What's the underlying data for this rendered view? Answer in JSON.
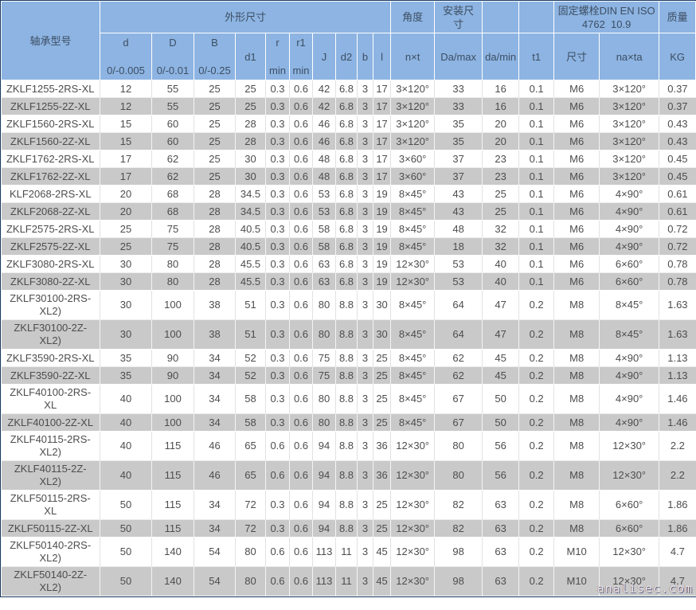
{
  "table": {
    "header": {
      "model": "轴承型号",
      "dims_group": "外形尺寸",
      "angle_group": "角度",
      "mount_group": "安装尺寸",
      "blank1": "",
      "blank2": "",
      "bolt_group": "固定螺栓DIN EN ISO 4762  10.9",
      "mass_group": "质量",
      "d_top": "d",
      "d_tol": "0/-0.005",
      "D_top": "D",
      "D_tol": "0/-0.01",
      "B_top": "B",
      "B_tol": "0/-0.25",
      "d1": "d1",
      "r_top": "r",
      "r_min": "min",
      "r1_top": "r1",
      "r1_min": "min",
      "J": "J",
      "d2": "d2",
      "b": "b",
      "l": "l",
      "nxt": "n×t",
      "Da_max": "Da/max",
      "da_min": "da/min",
      "t1": "t1",
      "size": "尺寸",
      "naxta": "na×ta",
      "kg": "KG"
    },
    "rows": [
      [
        "ZKLF1255-2RS-XL",
        "12",
        "55",
        "25",
        "25",
        "0.3",
        "0.6",
        "42",
        "6.8",
        "3",
        "17",
        "3×120°",
        "33",
        "16",
        "0.1",
        "M6",
        "3×120°",
        "0.37"
      ],
      [
        "ZKLF1255-2Z-XL",
        "12",
        "55",
        "25",
        "25",
        "0.3",
        "0.6",
        "42",
        "6.8",
        "3",
        "17",
        "3×120°",
        "33",
        "16",
        "0.1",
        "M6",
        "3×120°",
        "0.37"
      ],
      [
        "ZKLF1560-2RS-XL",
        "15",
        "60",
        "25",
        "28",
        "0.3",
        "0.6",
        "46",
        "6.8",
        "3",
        "17",
        "3×120°",
        "35",
        "20",
        "0.1",
        "M6",
        "3×120°",
        "0.43"
      ],
      [
        "ZKLF1560-2Z-XL",
        "15",
        "60",
        "25",
        "28",
        "0.3",
        "0.6",
        "46",
        "6.8",
        "3",
        "17",
        "3×120°",
        "35",
        "20",
        "0.1",
        "M6",
        "3×120°",
        "0.43"
      ],
      [
        "ZKLF1762-2RS-XL",
        "17",
        "62",
        "25",
        "30",
        "0.3",
        "0.6",
        "48",
        "6.8",
        "3",
        "17",
        "3×60°",
        "37",
        "23",
        "0.1",
        "M6",
        "3×120°",
        "0.45"
      ],
      [
        "ZKLF1762-2Z-XL",
        "17",
        "62",
        "25",
        "30",
        "0.3",
        "0.6",
        "48",
        "6.8",
        "3",
        "17",
        "3×60°",
        "37",
        "23",
        "0.1",
        "M6",
        "3×120°",
        "0.45"
      ],
      [
        "KLF2068-2RS-XL",
        "20",
        "68",
        "28",
        "34.5",
        "0.3",
        "0.6",
        "53",
        "6.8",
        "3",
        "19",
        "8×45°",
        "43",
        "25",
        "0.1",
        "M6",
        "4×90°",
        "0.61"
      ],
      [
        "ZKLF2068-2Z-XL",
        "20",
        "68",
        "28",
        "34.5",
        "0.3",
        "0.6",
        "53",
        "6.8",
        "3",
        "19",
        "8×45°",
        "43",
        "25",
        "0.1",
        "M6",
        "4×90°",
        "0.61"
      ],
      [
        "ZKLF2575-2RS-XL",
        "25",
        "75",
        "28",
        "40.5",
        "0.3",
        "0.6",
        "58",
        "6.8",
        "3",
        "19",
        "8×45°",
        "48",
        "32",
        "0.1",
        "M6",
        "4×90°",
        "0.72"
      ],
      [
        "ZKLF2575-2Z-XL",
        "25",
        "75",
        "28",
        "40.5",
        "0.3",
        "0.6",
        "58",
        "6.8",
        "3",
        "19",
        "8×45°",
        "18",
        "32",
        "0.1",
        "M6",
        "4×90°",
        "0.72"
      ],
      [
        "ZKLF3080-2RS-XL",
        "30",
        "80",
        "28",
        "45.5",
        "0.3",
        "0.6",
        "63",
        "6.8",
        "3",
        "19",
        "12×30°",
        "53",
        "40",
        "0.1",
        "M6",
        "6×60°",
        "0.78"
      ],
      [
        "ZKLF3080-2Z-XL",
        "30",
        "80",
        "28",
        "45.5",
        "0.3",
        "0.6",
        "63",
        "6.8",
        "3",
        "19",
        "12×30°",
        "53",
        "40",
        "0.1",
        "M6",
        "6×60°",
        "0.78"
      ],
      [
        "ZKLF30100-2RS-XL2)",
        "30",
        "100",
        "38",
        "51",
        "0.3",
        "0.6",
        "80",
        "8.8",
        "3",
        "30",
        "8×45°",
        "64",
        "47",
        "0.2",
        "M8",
        "8×45°",
        "1.63"
      ],
      [
        "ZKLF30100-2Z-XL2)",
        "30",
        "100",
        "38",
        "51",
        "0.3",
        "0.6",
        "80",
        "8.8",
        "3",
        "30",
        "8×45°",
        "64",
        "47",
        "0.2",
        "M8",
        "8×45°",
        "1.63"
      ],
      [
        "ZKLF3590-2RS-XL",
        "35",
        "90",
        "34",
        "52",
        "0.3",
        "0.6",
        "75",
        "8.8",
        "3",
        "25",
        "8×45°",
        "62",
        "45",
        "0.2",
        "M8",
        "4×90°",
        "1.13"
      ],
      [
        "ZKLF3590-2Z-XL",
        "35",
        "90",
        "34",
        "52",
        "0.3",
        "0.6",
        "75",
        "8.8",
        "3",
        "25",
        "8×45°",
        "62",
        "45",
        "0.2",
        "M8",
        "4×90°",
        "1.13"
      ],
      [
        "ZKLF40100-2RS-XL",
        "40",
        "100",
        "34",
        "58",
        "0.3",
        "0.6",
        "80",
        "8.8",
        "3",
        "25",
        "8×45°",
        "67",
        "50",
        "0.2",
        "M8",
        "4×90°",
        "1.46"
      ],
      [
        "ZKLF40100-2Z-XL",
        "40",
        "100",
        "34",
        "58",
        "0.3",
        "0.6",
        "80",
        "8.8",
        "3",
        "25",
        "8×45°",
        "67",
        "50",
        "0.2",
        "M8",
        "4×90°",
        "1.46"
      ],
      [
        "ZKLF40115-2RS-XL2)",
        "40",
        "115",
        "46",
        "65",
        "0.6",
        "0.6",
        "94",
        "8.8",
        "3",
        "36",
        "12×30°",
        "80",
        "56",
        "0.2",
        "M8",
        "12×30°",
        "2.2"
      ],
      [
        "ZKLF40115-2Z-XL2)",
        "40",
        "115",
        "46",
        "65",
        "0.6",
        "0.6",
        "94",
        "8.8",
        "3",
        "36",
        "12×30°",
        "80",
        "56",
        "0.2",
        "M8",
        "12×30°",
        "2.2"
      ],
      [
        "ZKLF50115-2RS-XL",
        "50",
        "115",
        "34",
        "72",
        "0.3",
        "0.6",
        "94",
        "8.8",
        "3",
        "25",
        "12×30°",
        "82",
        "63",
        "0.2",
        "M8",
        "6×60°",
        "1.86"
      ],
      [
        "ZKLF50115-2Z-XL",
        "50",
        "115",
        "34",
        "72",
        "0.3",
        "0.6",
        "94",
        "8.8",
        "3",
        "25",
        "12×30°",
        "82",
        "63",
        "0.2",
        "M8",
        "6×60°",
        "1.86"
      ],
      [
        "ZKLF50140-2RS-XL2)",
        "50",
        "140",
        "54",
        "80",
        "0.6",
        "0.6",
        "113",
        "11",
        "3",
        "45",
        "12×30°",
        "98",
        "63",
        "0.2",
        "M10",
        "12×30°",
        "4.7"
      ],
      [
        "ZKLF50140-2Z-XL2)",
        "50",
        "140",
        "54",
        "80",
        "0.6",
        "0.6",
        "113",
        "11",
        "3",
        "45",
        "12×30°",
        "98",
        "63",
        "0.2",
        "M10",
        "12×30°",
        "4.7"
      ]
    ]
  },
  "watermark": "analisec.com"
}
